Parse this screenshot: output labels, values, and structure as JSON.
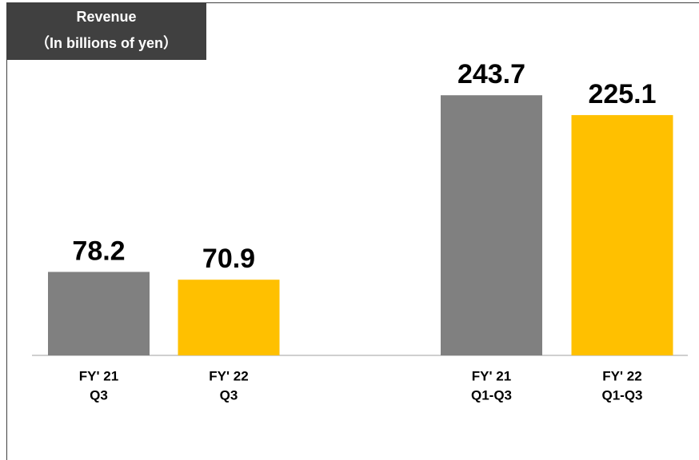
{
  "chart_data": {
    "type": "bar",
    "title": "Revenue",
    "subtitle": "（In billions of yen）",
    "categories": [
      [
        "FY' 21",
        "Q3"
      ],
      [
        "FY' 22",
        "Q3"
      ],
      [
        "FY' 21",
        "Q1-Q3"
      ],
      [
        "FY' 22",
        "Q1-Q3"
      ]
    ],
    "values": [
      78.2,
      70.9,
      243.7,
      225.1
    ],
    "colors": [
      "#808080",
      "#ffc000",
      "#808080",
      "#ffc000"
    ],
    "ylim": [
      0,
      300
    ]
  }
}
